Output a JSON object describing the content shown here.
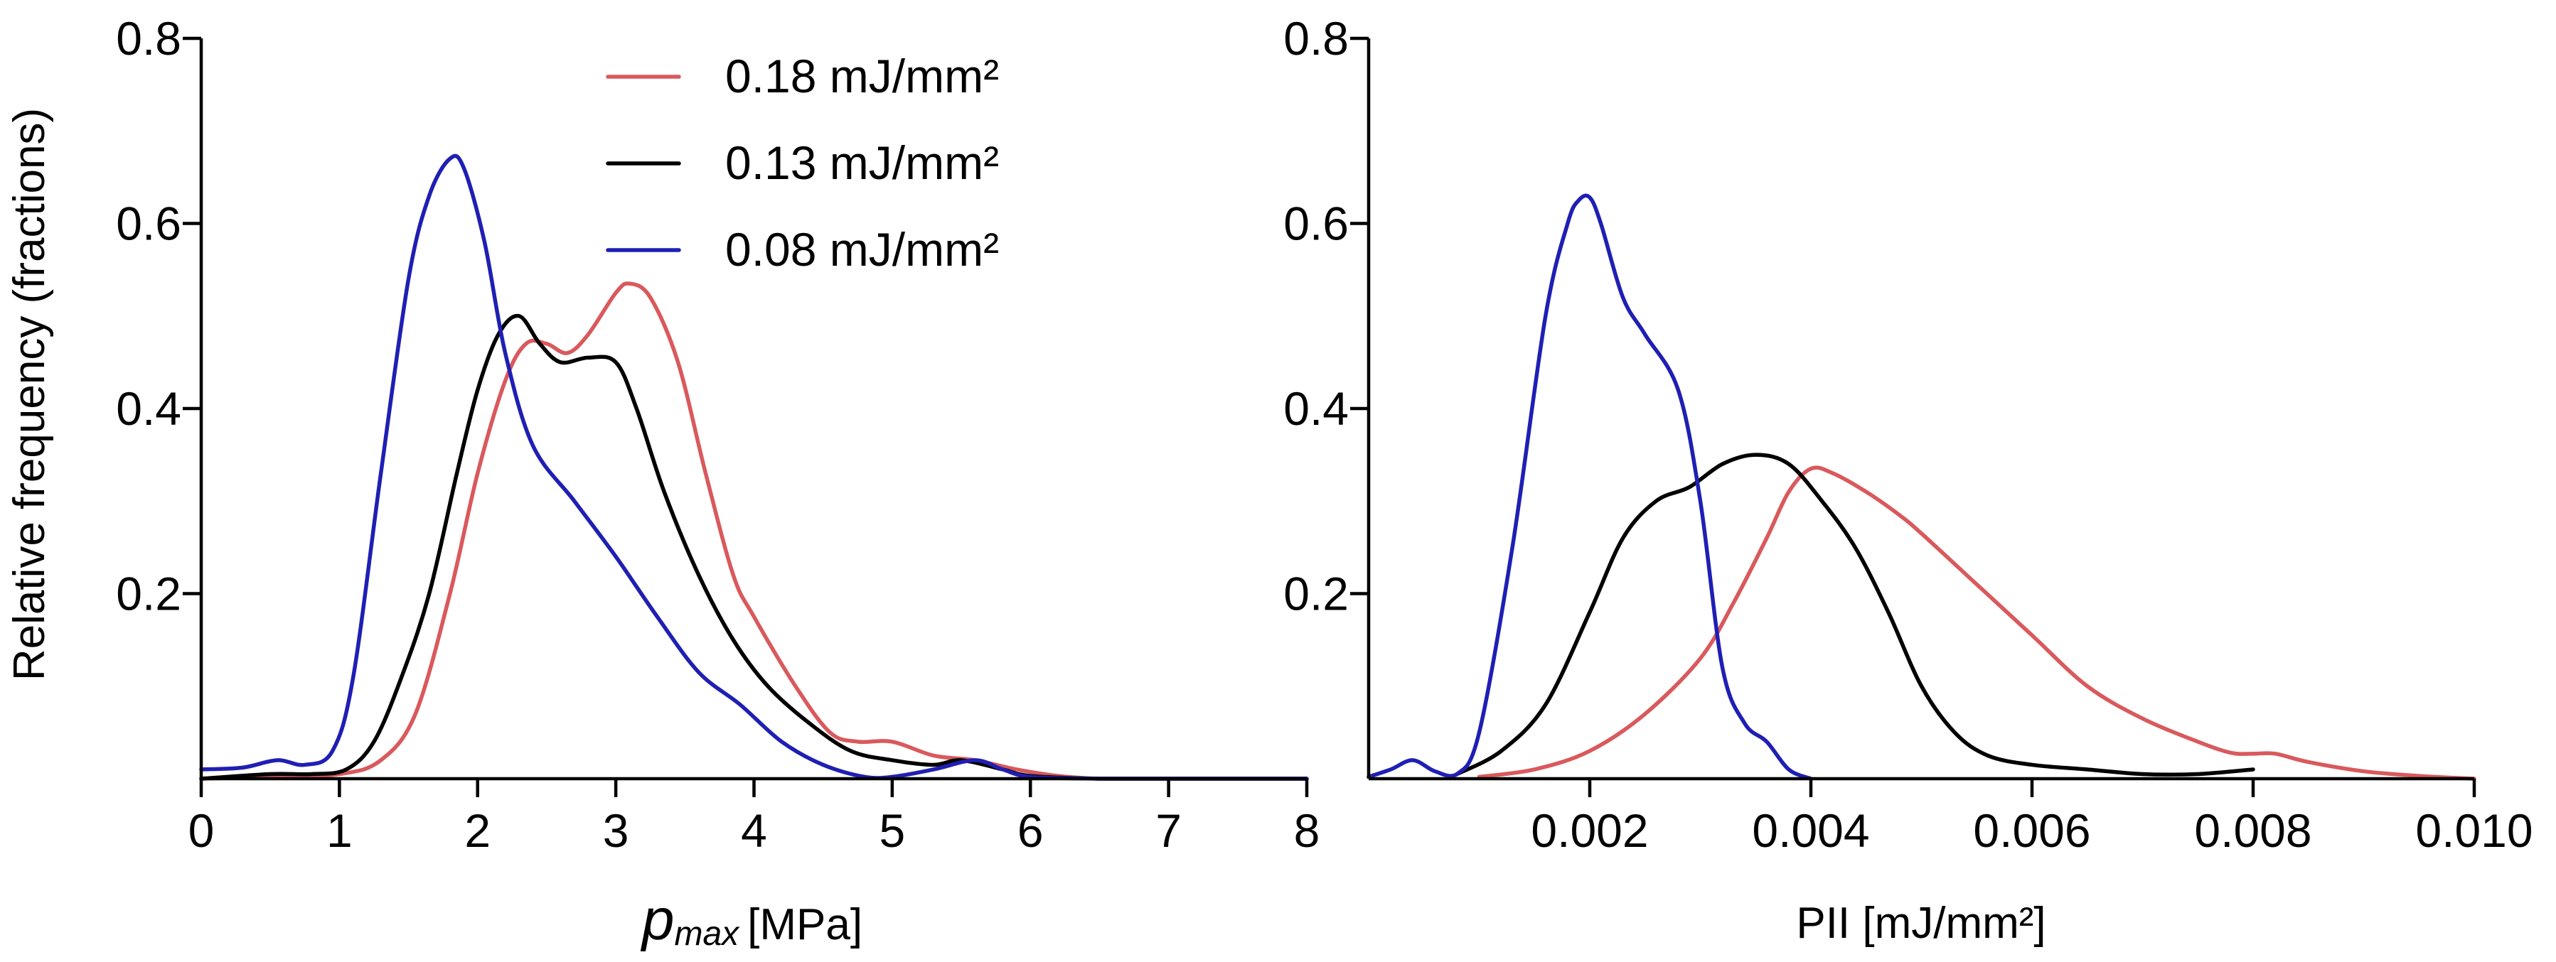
{
  "chart_data": [
    {
      "id": "left",
      "type": "line",
      "ylabel": "Relative frequency (fractions)",
      "xlabel_symbol": "p",
      "xlabel_subscript": "max",
      "xlabel_unit": "[MPa]",
      "xlim": [
        0,
        8
      ],
      "ylim": [
        0,
        0.8
      ],
      "xticks": [
        0,
        1,
        2,
        3,
        4,
        5,
        6,
        7,
        8
      ],
      "xtick_labels": [
        "0",
        "1",
        "2",
        "3",
        "4",
        "5",
        "6",
        "7",
        "8"
      ],
      "yticks": [
        0.2,
        0.4,
        0.6,
        0.8
      ],
      "ytick_labels": [
        "0.2",
        "0.4",
        "0.6",
        "0.8"
      ],
      "legend": [
        {
          "label": "0.18 mJ/mm²",
          "color": "#d9595c"
        },
        {
          "label": "0.13 mJ/mm²",
          "color": "#000000"
        },
        {
          "label": "0.08 mJ/mm²",
          "color": "#1f1fb4"
        }
      ],
      "series": [
        {
          "name": "0.18 mJ/mm²",
          "color": "#d9595c",
          "x": [
            0,
            0.5,
            1.0,
            1.3,
            1.55,
            1.8,
            2.0,
            2.2,
            2.35,
            2.5,
            2.65,
            2.8,
            3.0,
            3.1,
            3.25,
            3.45,
            3.65,
            3.85,
            4.0,
            4.3,
            4.55,
            4.75,
            5.0,
            5.3,
            5.6,
            5.9,
            6.2,
            6.5,
            7.0,
            8.0
          ],
          "values": [
            0,
            0.002,
            0.005,
            0.02,
            0.07,
            0.2,
            0.33,
            0.43,
            0.47,
            0.47,
            0.46,
            0.48,
            0.525,
            0.535,
            0.52,
            0.45,
            0.33,
            0.22,
            0.175,
            0.1,
            0.05,
            0.04,
            0.04,
            0.025,
            0.02,
            0.01,
            0.003,
            0,
            0,
            0
          ]
        },
        {
          "name": "0.13 mJ/mm²",
          "color": "#000000",
          "x": [
            0,
            0.5,
            0.8,
            1.05,
            1.25,
            1.45,
            1.65,
            1.85,
            2.0,
            2.15,
            2.3,
            2.45,
            2.6,
            2.8,
            3.0,
            3.15,
            3.35,
            3.6,
            3.85,
            4.1,
            4.4,
            4.7,
            5.0,
            5.3,
            5.5,
            5.8,
            6.0,
            6.5,
            7.0,
            8.0
          ],
          "values": [
            0,
            0.005,
            0.005,
            0.01,
            0.04,
            0.11,
            0.2,
            0.33,
            0.42,
            0.48,
            0.5,
            0.47,
            0.45,
            0.455,
            0.45,
            0.4,
            0.31,
            0.22,
            0.15,
            0.1,
            0.06,
            0.03,
            0.02,
            0.015,
            0.02,
            0.01,
            0.003,
            0,
            0,
            0
          ]
        },
        {
          "name": "0.08 mJ/mm²",
          "color": "#1f1fb4",
          "x": [
            0,
            0.3,
            0.55,
            0.75,
            0.95,
            1.1,
            1.3,
            1.5,
            1.65,
            1.8,
            1.9,
            2.05,
            2.2,
            2.4,
            2.7,
            3.0,
            3.3,
            3.6,
            3.9,
            4.2,
            4.5,
            4.8,
            5.0,
            5.3,
            5.6,
            5.8,
            6.0,
            6.5,
            7.0,
            8.0
          ],
          "values": [
            0.01,
            0.012,
            0.02,
            0.015,
            0.03,
            0.11,
            0.33,
            0.54,
            0.63,
            0.67,
            0.66,
            0.58,
            0.46,
            0.36,
            0.3,
            0.24,
            0.175,
            0.115,
            0.08,
            0.04,
            0.015,
            0.002,
            0.002,
            0.01,
            0.02,
            0.01,
            0.002,
            0,
            0,
            0
          ]
        }
      ]
    },
    {
      "id": "right",
      "type": "line",
      "ylabel": "",
      "xlabel": "PII [mJ/mm²]",
      "xlim": [
        0,
        0.01
      ],
      "ylim": [
        0,
        0.8
      ],
      "xticks": [
        0.002,
        0.004,
        0.006,
        0.008,
        0.01
      ],
      "xtick_labels": [
        "0.002",
        "0.004",
        "0.006",
        "0.008",
        "0.010"
      ],
      "yticks": [
        0.2,
        0.4,
        0.6,
        0.8
      ],
      "ytick_labels": [
        "0.2",
        "0.4",
        "0.6",
        "0.8"
      ],
      "series": [
        {
          "name": "0.18 mJ/mm²",
          "color": "#d9595c",
          "x": [
            0.001,
            0.0015,
            0.002,
            0.0025,
            0.003,
            0.0033,
            0.0036,
            0.0038,
            0.004,
            0.0042,
            0.0045,
            0.0048,
            0.005,
            0.0055,
            0.006,
            0.0065,
            0.007,
            0.0075,
            0.0078,
            0.008,
            0.0082,
            0.0085,
            0.009,
            0.0095,
            0.01
          ],
          "values": [
            0.002,
            0.01,
            0.03,
            0.07,
            0.13,
            0.19,
            0.26,
            0.31,
            0.335,
            0.33,
            0.31,
            0.285,
            0.265,
            0.21,
            0.155,
            0.1,
            0.065,
            0.04,
            0.028,
            0.027,
            0.027,
            0.018,
            0.008,
            0.003,
            0
          ]
        },
        {
          "name": "0.13 mJ/mm²",
          "color": "#000000",
          "x": [
            0.0008,
            0.0012,
            0.0016,
            0.002,
            0.0023,
            0.0026,
            0.0029,
            0.0032,
            0.0035,
            0.0038,
            0.0041,
            0.0044,
            0.0047,
            0.005,
            0.0053,
            0.0056,
            0.006,
            0.0065,
            0.007,
            0.0075,
            0.008
          ],
          "values": [
            0.005,
            0.03,
            0.08,
            0.18,
            0.26,
            0.3,
            0.315,
            0.34,
            0.35,
            0.34,
            0.3,
            0.25,
            0.18,
            0.1,
            0.05,
            0.025,
            0.015,
            0.01,
            0.005,
            0.005,
            0.01
          ]
        },
        {
          "name": "0.08 mJ/mm²",
          "color": "#1f1fb4",
          "x": [
            0,
            0.0002,
            0.0004,
            0.0006,
            0.0008,
            0.001,
            0.0013,
            0.0016,
            0.0018,
            0.0019,
            0.002,
            0.0021,
            0.0023,
            0.0025,
            0.0028,
            0.003,
            0.0032,
            0.0034,
            0.0036,
            0.0038,
            0.004
          ],
          "values": [
            0.002,
            0.01,
            0.02,
            0.008,
            0.005,
            0.05,
            0.25,
            0.5,
            0.6,
            0.625,
            0.628,
            0.6,
            0.52,
            0.48,
            0.42,
            0.3,
            0.12,
            0.06,
            0.04,
            0.01,
            0
          ]
        }
      ]
    }
  ]
}
